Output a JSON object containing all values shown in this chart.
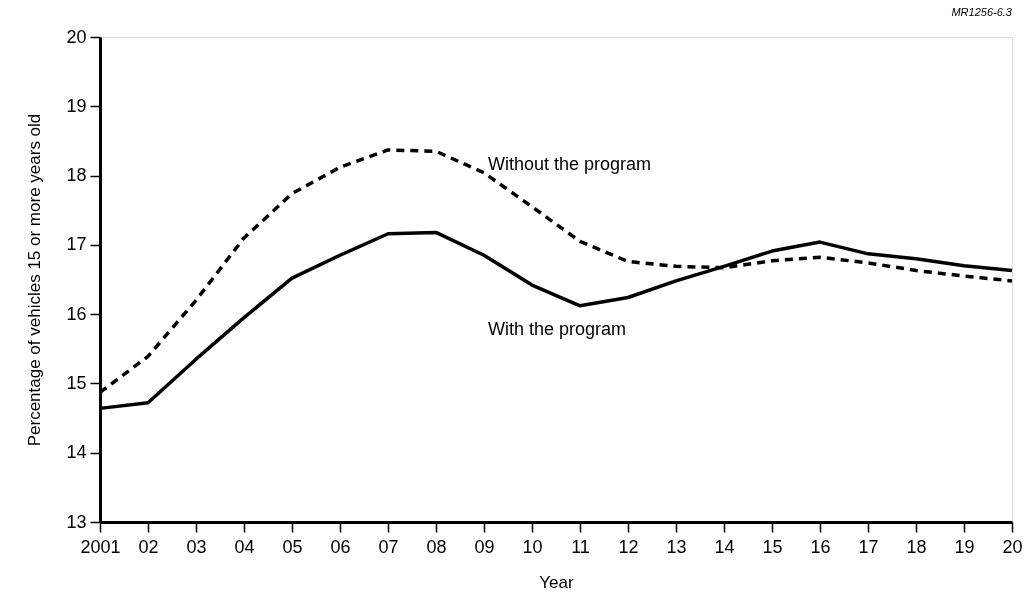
{
  "chart_data": {
    "type": "line",
    "xlabel": "Year",
    "ylabel": "Percentage of vehicles 15 or more years old",
    "x": [
      2001,
      2002,
      2003,
      2004,
      2005,
      2006,
      2007,
      2008,
      2009,
      2010,
      2011,
      2012,
      2013,
      2014,
      2015,
      2016,
      2017,
      2018,
      2019,
      2020
    ],
    "series": [
      {
        "name": "Without the program",
        "color": "#000000",
        "line_style": "dashed",
        "values": [
          14.87,
          15.39,
          16.2,
          17.1,
          17.74,
          18.12,
          18.37,
          18.35,
          18.04,
          17.55,
          17.05,
          16.76,
          16.69,
          16.67,
          16.77,
          16.82,
          16.74,
          16.63,
          16.55,
          16.48
        ]
      },
      {
        "name": "With the program",
        "color": "#000000",
        "line_style": "solid",
        "values": [
          14.64,
          14.72,
          15.35,
          15.95,
          16.52,
          16.85,
          17.16,
          17.18,
          16.85,
          16.42,
          16.12,
          16.24,
          16.48,
          16.69,
          16.91,
          17.04,
          16.87,
          16.8,
          16.7,
          16.63
        ]
      }
    ],
    "xlim": [
      2001,
      2020
    ],
    "xticks": [
      2001,
      {
        "value": 2002,
        "label": "02"
      },
      {
        "value": 2003,
        "label": "03"
      },
      {
        "value": 2004,
        "label": "04"
      },
      {
        "value": 2005,
        "label": "05"
      },
      {
        "value": 2006,
        "label": "06"
      },
      {
        "value": 2007,
        "label": "07"
      },
      {
        "value": 2008,
        "label": "08"
      },
      {
        "value": 2009,
        "label": "09"
      },
      {
        "value": 2010,
        "label": "10"
      },
      {
        "value": 2011,
        "label": "11"
      },
      {
        "value": 2012,
        "label": "12"
      },
      {
        "value": 2013,
        "label": "13"
      },
      {
        "value": 2014,
        "label": "14"
      },
      {
        "value": 2015,
        "label": "15"
      },
      {
        "value": 2016,
        "label": "16"
      },
      {
        "value": 2017,
        "label": "17"
      },
      {
        "value": 2018,
        "label": "18"
      },
      {
        "value": 2019,
        "label": "19"
      },
      {
        "value": 2020,
        "label": "20"
      }
    ],
    "ylim": [
      13,
      20
    ],
    "yticks": [
      13,
      14,
      15,
      16,
      17,
      18,
      19,
      20
    ],
    "grid": false,
    "legend": false,
    "marker": "none",
    "annotations": [
      "MR1256-6.3"
    ]
  }
}
